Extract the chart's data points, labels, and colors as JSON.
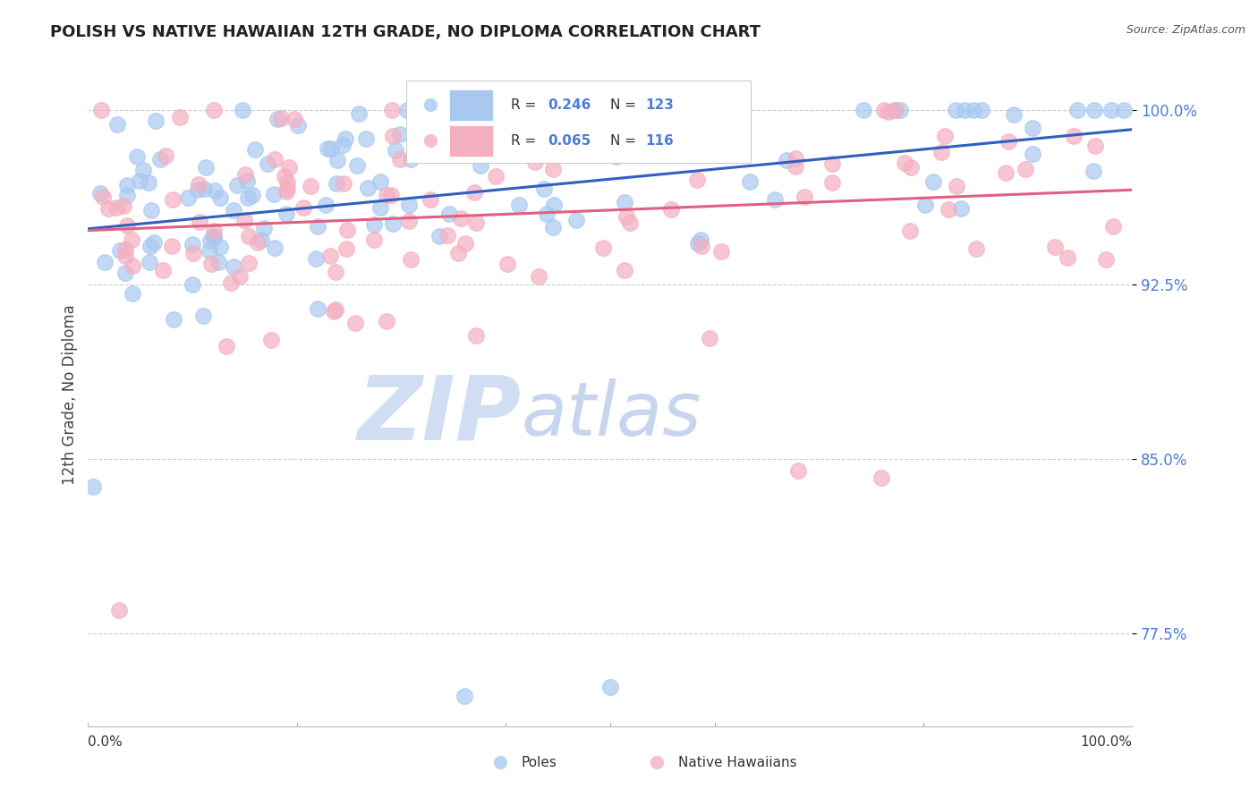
{
  "title": "POLISH VS NATIVE HAWAIIAN 12TH GRADE, NO DIPLOMA CORRELATION CHART",
  "source": "Source: ZipAtlas.com",
  "ylabel": "12th Grade, No Diploma",
  "yticks": [
    77.5,
    85.0,
    92.5,
    100.0
  ],
  "ytick_labels": [
    "77.5%",
    "85.0%",
    "92.5%",
    "100.0%"
  ],
  "R_blue": 0.246,
  "N_blue": 123,
  "R_pink": 0.065,
  "N_pink": 116,
  "legend_labels": [
    "Poles",
    "Native Hawaiians"
  ],
  "blue_color": "#a8c8f0",
  "pink_color": "#f4afc0",
  "blue_line_color": "#3060c0",
  "pink_line_color": "#e06080",
  "ytick_color": "#4a7fd4",
  "watermark_zip": "ZIP",
  "watermark_atlas": "atlas",
  "watermark_color_zip": "#c8d8f0",
  "watermark_color_atlas": "#b8c8e8",
  "bg_color": "#ffffff",
  "grid_color": "#cccccc",
  "legend_R_color": "#3060c0",
  "legend_N_color": "#222222",
  "title_color": "#222222",
  "source_color": "#555555"
}
